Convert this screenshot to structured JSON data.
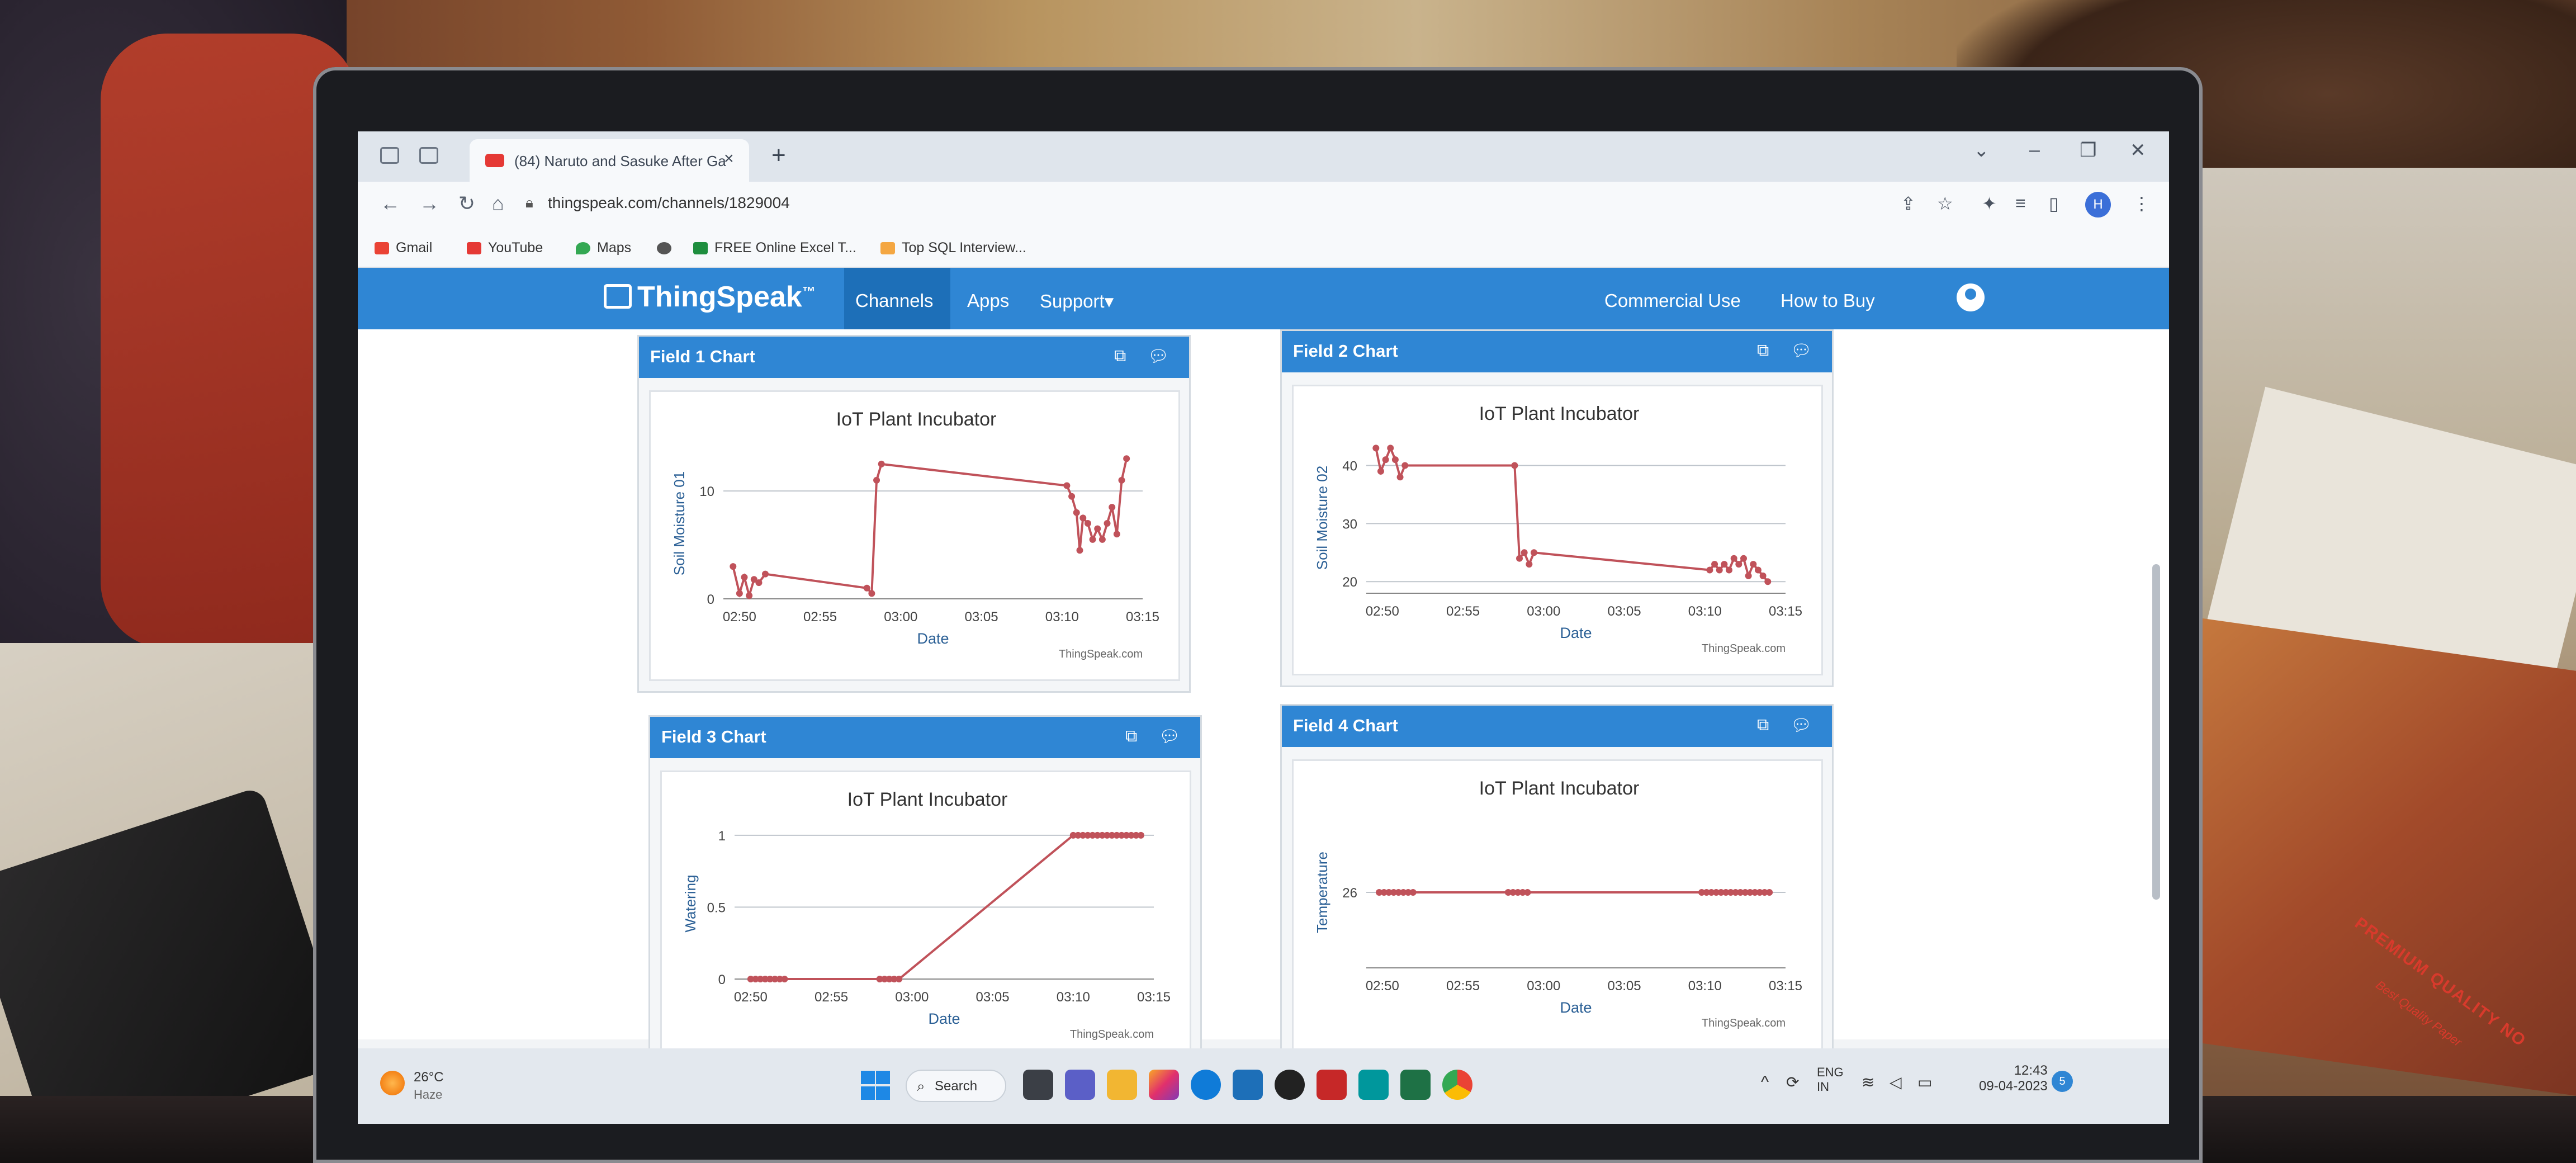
{
  "browser": {
    "tab_title": "(84) Naruto and Sasuke After Ga",
    "url": "thingspeak.com/channels/1829004",
    "profile_initial": "H",
    "bookmarks": [
      "Gmail",
      "YouTube",
      "Maps",
      "FREE Online Excel T...",
      "Top SQL Interview..."
    ]
  },
  "nav": {
    "logo": "ThingSpeak",
    "logo_tm": "™",
    "links": [
      "Channels",
      "Apps",
      "Support▾"
    ],
    "right_links": [
      "Commercial Use",
      "How to Buy"
    ]
  },
  "panels": [
    {
      "title": "Field 1 Chart"
    },
    {
      "title": "Field 2 Chart"
    },
    {
      "title": "Field 3 Chart"
    },
    {
      "title": "Field 4 Chart"
    }
  ],
  "chart_data": [
    {
      "type": "line",
      "title": "IoT Plant Incubator",
      "xlabel": "Date",
      "ylabel": "Soil Moisture 01",
      "x_ticks": [
        "02:50",
        "02:55",
        "03:00",
        "03:05",
        "03:10",
        "03:15"
      ],
      "y_ticks": [
        0,
        10
      ],
      "ylim": [
        0,
        14
      ],
      "credit": "ThingSpeak.com",
      "series": [
        {
          "x": [
            "02:49.6",
            "02:50.0",
            "02:50.3",
            "02:50.6",
            "02:50.9",
            "02:51.2",
            "02:51.6",
            "02:57.9",
            "02:58.2",
            "02:58.5",
            "02:58.8",
            "03:10.3",
            "03:10.6",
            "03:10.9",
            "03:11.1",
            "03:11.3",
            "03:11.6",
            "03:11.9",
            "03:12.2",
            "03:12.5",
            "03:12.8",
            "03:13.1",
            "03:13.4",
            "03:13.7",
            "03:14.0"
          ],
          "values": [
            3,
            0.5,
            2,
            0.3,
            1.8,
            1.5,
            2.3,
            1,
            0.5,
            11,
            12.5,
            10.5,
            9.5,
            8,
            4.5,
            7.5,
            7,
            5.5,
            6.5,
            5.5,
            7,
            8.5,
            6,
            11,
            13
          ]
        }
      ]
    },
    {
      "type": "line",
      "title": "IoT Plant Incubator",
      "xlabel": "Date",
      "ylabel": "Soil Moisture 02",
      "x_ticks": [
        "02:50",
        "02:55",
        "03:00",
        "03:05",
        "03:10",
        "03:15"
      ],
      "y_ticks": [
        20,
        30,
        40
      ],
      "ylim": [
        18,
        44
      ],
      "credit": "ThingSpeak.com",
      "series": [
        {
          "x": [
            "02:49.6",
            "02:49.9",
            "02:50.2",
            "02:50.5",
            "02:50.8",
            "02:51.1",
            "02:51.4",
            "02:58.2",
            "02:58.5",
            "02:58.8",
            "02:59.1",
            "02:59.4",
            "03:10.3",
            "03:10.6",
            "03:10.9",
            "03:11.2",
            "03:11.5",
            "03:11.8",
            "03:12.1",
            "03:12.4",
            "03:12.7",
            "03:13.0",
            "03:13.3",
            "03:13.6",
            "03:13.9"
          ],
          "values": [
            43,
            39,
            41,
            43,
            41,
            38,
            40,
            40,
            24,
            25,
            23,
            25,
            22,
            23,
            22,
            23,
            22,
            24,
            23,
            24,
            21,
            23,
            22,
            21,
            20
          ]
        }
      ]
    },
    {
      "type": "line",
      "title": "IoT Plant Incubator",
      "xlabel": "Date",
      "ylabel": "Watering",
      "x_ticks": [
        "02:50",
        "02:55",
        "03:00",
        "03:05",
        "03:10",
        "03:15"
      ],
      "y_ticks": [
        0,
        0.5,
        1
      ],
      "ylim": [
        0,
        1.05
      ],
      "credit": "ThingSpeak.com",
      "series": [
        {
          "x": [
            "02:50.0",
            "02:50.3",
            "02:50.6",
            "02:50.9",
            "02:51.2",
            "02:51.5",
            "02:51.8",
            "02:52.1",
            "02:58.0",
            "02:58.3",
            "02:58.6",
            "02:58.9",
            "02:59.2",
            "03:10.0",
            "03:10.3",
            "03:10.6",
            "03:10.9",
            "03:11.2",
            "03:11.5",
            "03:11.8",
            "03:12.1",
            "03:12.4",
            "03:12.7",
            "03:13.0",
            "03:13.3",
            "03:13.6",
            "03:13.9",
            "03:14.2"
          ],
          "values": [
            0,
            0,
            0,
            0,
            0,
            0,
            0,
            0,
            0,
            0,
            0,
            0,
            0,
            1,
            1,
            1,
            1,
            1,
            1,
            1,
            1,
            1,
            1,
            1,
            1,
            1,
            1,
            1
          ]
        }
      ]
    },
    {
      "type": "line",
      "title": "IoT Plant Incubator",
      "xlabel": "Date",
      "ylabel": "Temperature",
      "x_ticks": [
        "02:50",
        "02:55",
        "03:00",
        "03:05",
        "03:10",
        "03:15"
      ],
      "y_ticks": [
        26
      ],
      "ylim": [
        20,
        32
      ],
      "credit": "ThingSpeak.com",
      "series": [
        {
          "x": [
            "02:49.8",
            "02:50.1",
            "02:50.4",
            "02:50.7",
            "02:51.0",
            "02:51.3",
            "02:51.6",
            "02:51.9",
            "02:57.8",
            "02:58.1",
            "02:58.4",
            "02:58.7",
            "02:59.0",
            "03:09.8",
            "03:10.1",
            "03:10.4",
            "03:10.7",
            "03:11.0",
            "03:11.3",
            "03:11.6",
            "03:11.9",
            "03:12.2",
            "03:12.5",
            "03:12.8",
            "03:13.1",
            "03:13.4",
            "03:13.7",
            "03:14.0"
          ],
          "values": [
            26,
            26,
            26,
            26,
            26,
            26,
            26,
            26,
            26,
            26,
            26,
            26,
            26,
            26,
            26,
            26,
            26,
            26,
            26,
            26,
            26,
            26,
            26,
            26,
            26,
            26,
            26,
            26
          ]
        }
      ]
    }
  ],
  "taskbar": {
    "temp": "26°C",
    "weather": "Haze",
    "search": "Search",
    "lang": "ENG",
    "region": "IN",
    "time": "12:43",
    "date": "09-04-2023",
    "notif": "5"
  },
  "background": {
    "book_label": "PREMIUM QUALITY NO",
    "book_sub": "Best Quality Paper"
  }
}
